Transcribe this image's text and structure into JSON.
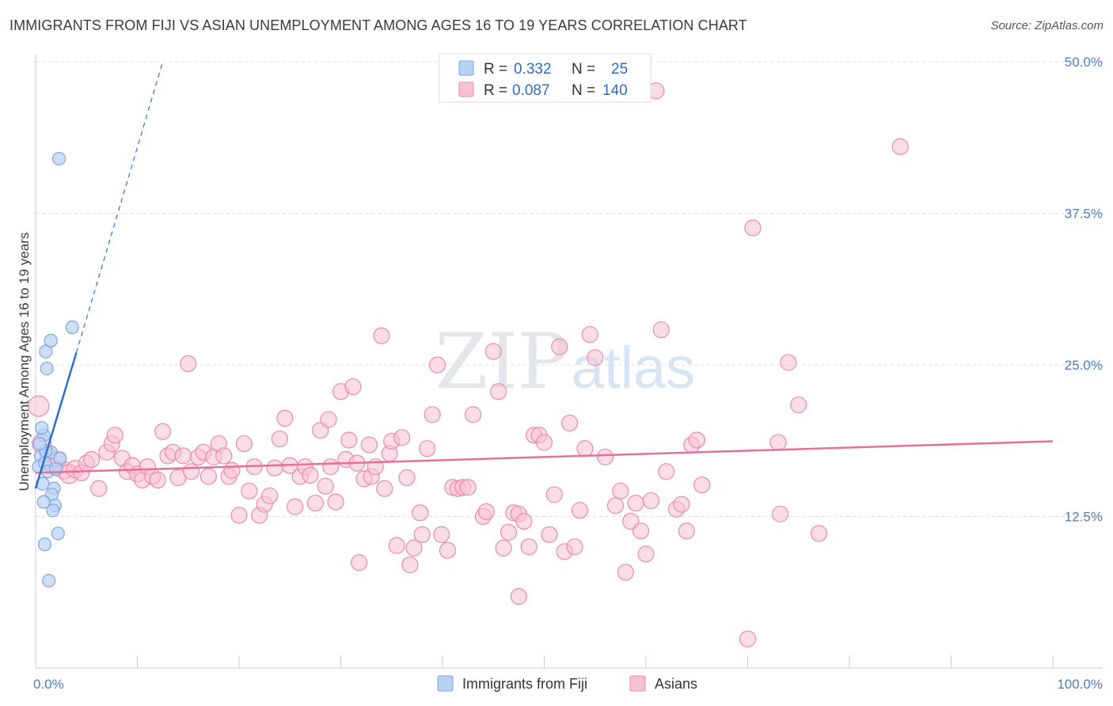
{
  "title": "IMMIGRANTS FROM FIJI VS ASIAN UNEMPLOYMENT AMONG AGES 16 TO 19 YEARS CORRELATION CHART",
  "source": "Source: ZipAtlas.com",
  "watermark": {
    "zip": "ZIP",
    "atlas": "atlas"
  },
  "colors": {
    "fiji_fill": "#b7d1f3",
    "fiji_stroke": "#7ea6dd",
    "fiji_line": "#2b6fd1",
    "asian_fill": "#f9c1d2",
    "asian_stroke": "#e98aab",
    "asian_line": "#e76f9a",
    "grid": "#d9dde3",
    "axis_text": "#4a7cc7"
  },
  "legend": {
    "entries": [
      {
        "r_label": "R =",
        "r_value": "0.332",
        "n_label": "N =",
        "n_value": "25"
      },
      {
        "r_label": "R =",
        "r_value": "0.087",
        "n_label": "N =",
        "n_value": "140"
      }
    ]
  },
  "bottom_legend": [
    "Immigrants from Fiji",
    "Asians"
  ],
  "chart_data": {
    "type": "scatter",
    "title": "IMMIGRANTS FROM FIJI VS ASIAN UNEMPLOYMENT AMONG AGES 16 TO 19 YEARS CORRELATION CHART",
    "xlabel": "",
    "ylabel": "Unemployment Among Ages 16 to 19 years",
    "xlim": [
      0,
      100
    ],
    "ylim": [
      0,
      50
    ],
    "x_tick_labels": [
      {
        "value": 0,
        "label": "0.0%"
      },
      {
        "value": 100,
        "label": "100.0%"
      }
    ],
    "y_tick_labels": [
      {
        "value": 12.5,
        "label": "12.5%"
      },
      {
        "value": 25,
        "label": "25.0%"
      },
      {
        "value": 37.5,
        "label": "37.5%"
      },
      {
        "value": 50,
        "label": "50.0%"
      }
    ],
    "grid": true,
    "legend_position": "top-center",
    "series": [
      {
        "name": "Immigrants from Fiji",
        "r": 0.332,
        "n": 25,
        "trend": {
          "x0": 0,
          "y0": 14.8,
          "x1": 4.0,
          "y1": 26.0,
          "dashed_to": [
            12.5,
            50
          ]
        },
        "points": [
          [
            0.5,
            17.5,
            8
          ],
          [
            0.3,
            16.6,
            8
          ],
          [
            0.8,
            19.2,
            8
          ],
          [
            0.6,
            19.8,
            8
          ],
          [
            1.5,
            17.8,
            8
          ],
          [
            1.0,
            17.9,
            8
          ],
          [
            2.4,
            17.3,
            8
          ],
          [
            0.9,
            16.9,
            8
          ],
          [
            1.2,
            16.2,
            8
          ],
          [
            0.7,
            15.2,
            8
          ],
          [
            1.8,
            14.8,
            8
          ],
          [
            1.6,
            14.3,
            8
          ],
          [
            1.9,
            13.4,
            8
          ],
          [
            1.7,
            13.0,
            8
          ],
          [
            0.8,
            13.7,
            8
          ],
          [
            1.1,
            24.7,
            8
          ],
          [
            1.0,
            26.1,
            8
          ],
          [
            1.5,
            27.0,
            8
          ],
          [
            3.6,
            28.1,
            8
          ],
          [
            2.3,
            42.0,
            8
          ],
          [
            2.2,
            11.1,
            8
          ],
          [
            0.9,
            10.2,
            8
          ],
          [
            1.3,
            7.2,
            8
          ],
          [
            0.4,
            18.5,
            8
          ],
          [
            2.0,
            16.4,
            8
          ]
        ]
      },
      {
        "name": "Asians",
        "r": 0.087,
        "n": 140,
        "trend": {
          "x0": 0,
          "y0": 16.1,
          "x1": 100,
          "y1": 18.7
        },
        "points": [
          [
            0.3,
            21.6,
            13
          ],
          [
            0.6,
            18.5,
            12
          ],
          [
            1.2,
            17.6,
            10
          ],
          [
            1.8,
            16.6,
            10
          ],
          [
            2.2,
            17.2,
            10
          ],
          [
            2.8,
            16.3,
            11
          ],
          [
            3.3,
            16.0,
            12
          ],
          [
            3.9,
            16.4,
            11
          ],
          [
            4.5,
            16.1,
            10
          ],
          [
            5.0,
            16.9,
            10
          ],
          [
            5.5,
            17.2,
            10
          ],
          [
            6.2,
            14.8,
            10
          ],
          [
            7.0,
            17.8,
            10
          ],
          [
            7.5,
            18.5,
            10
          ],
          [
            7.8,
            19.2,
            10
          ],
          [
            8.5,
            17.3,
            10
          ],
          [
            9.0,
            16.2,
            10
          ],
          [
            9.5,
            16.7,
            10
          ],
          [
            10.0,
            16.0,
            10
          ],
          [
            10.5,
            15.5,
            10
          ],
          [
            11.0,
            16.6,
            10
          ],
          [
            11.5,
            15.8,
            10
          ],
          [
            12.0,
            15.5,
            10
          ],
          [
            12.5,
            19.5,
            10
          ],
          [
            13.0,
            17.5,
            10
          ],
          [
            13.5,
            17.8,
            10
          ],
          [
            14.0,
            15.7,
            10
          ],
          [
            14.5,
            17.5,
            10
          ],
          [
            15.0,
            25.1,
            10
          ],
          [
            15.3,
            16.2,
            10
          ],
          [
            16.0,
            17.4,
            10
          ],
          [
            16.5,
            17.8,
            10
          ],
          [
            17.0,
            15.8,
            10
          ],
          [
            17.5,
            17.4,
            10
          ],
          [
            18.0,
            18.5,
            10
          ],
          [
            18.5,
            17.5,
            10
          ],
          [
            19.0,
            15.8,
            10
          ],
          [
            19.3,
            16.3,
            10
          ],
          [
            20.0,
            12.6,
            10
          ],
          [
            20.5,
            18.5,
            10
          ],
          [
            21.0,
            14.6,
            10
          ],
          [
            21.5,
            16.6,
            10
          ],
          [
            22.0,
            12.6,
            10
          ],
          [
            22.5,
            13.5,
            10
          ],
          [
            23.0,
            14.2,
            10
          ],
          [
            23.5,
            16.5,
            10
          ],
          [
            24.0,
            18.9,
            10
          ],
          [
            24.5,
            20.6,
            10
          ],
          [
            25.0,
            16.7,
            10
          ],
          [
            25.5,
            13.3,
            10
          ],
          [
            26.0,
            15.8,
            10
          ],
          [
            26.5,
            16.6,
            10
          ],
          [
            27.0,
            15.9,
            10
          ],
          [
            27.5,
            13.6,
            10
          ],
          [
            28.0,
            19.6,
            10
          ],
          [
            28.5,
            15.0,
            10
          ],
          [
            28.8,
            20.5,
            10
          ],
          [
            29.0,
            16.6,
            10
          ],
          [
            29.5,
            13.7,
            10
          ],
          [
            30.0,
            22.8,
            10
          ],
          [
            30.5,
            17.2,
            10
          ],
          [
            30.8,
            18.8,
            10
          ],
          [
            31.2,
            23.2,
            10
          ],
          [
            31.6,
            16.9,
            10
          ],
          [
            31.8,
            8.7,
            10
          ],
          [
            32.3,
            15.6,
            10
          ],
          [
            32.8,
            18.4,
            10
          ],
          [
            33.0,
            15.8,
            10
          ],
          [
            33.4,
            16.6,
            10
          ],
          [
            34.0,
            27.4,
            10
          ],
          [
            34.3,
            14.8,
            10
          ],
          [
            34.8,
            17.7,
            10
          ],
          [
            35.0,
            18.7,
            10
          ],
          [
            35.5,
            10.1,
            10
          ],
          [
            36.0,
            19.0,
            10
          ],
          [
            36.5,
            15.7,
            10
          ],
          [
            36.8,
            8.5,
            10
          ],
          [
            37.2,
            9.9,
            10
          ],
          [
            37.8,
            12.8,
            10
          ],
          [
            38.0,
            11.0,
            10
          ],
          [
            38.5,
            18.1,
            10
          ],
          [
            39.0,
            20.9,
            10
          ],
          [
            39.5,
            25.0,
            10
          ],
          [
            39.9,
            11.0,
            10
          ],
          [
            40.5,
            9.7,
            10
          ],
          [
            41.0,
            14.9,
            10
          ],
          [
            41.5,
            14.8,
            10
          ],
          [
            42.0,
            14.9,
            10
          ],
          [
            42.5,
            14.9,
            10
          ],
          [
            43.0,
            20.9,
            10
          ],
          [
            44.0,
            12.5,
            10
          ],
          [
            44.3,
            12.9,
            10
          ],
          [
            45.0,
            26.1,
            10
          ],
          [
            45.5,
            22.8,
            10
          ],
          [
            46.0,
            9.9,
            10
          ],
          [
            46.5,
            11.2,
            10
          ],
          [
            47.0,
            12.8,
            10
          ],
          [
            47.5,
            12.7,
            10
          ],
          [
            48.0,
            12.1,
            10
          ],
          [
            48.5,
            10.0,
            10
          ],
          [
            49.0,
            19.2,
            10
          ],
          [
            49.5,
            19.2,
            10
          ],
          [
            50.0,
            18.6,
            10
          ],
          [
            50.5,
            11.0,
            10
          ],
          [
            51.0,
            14.3,
            10
          ],
          [
            51.5,
            26.5,
            10
          ],
          [
            52.0,
            9.6,
            10
          ],
          [
            52.5,
            20.2,
            10
          ],
          [
            53.0,
            10.0,
            10
          ],
          [
            53.5,
            13.0,
            10
          ],
          [
            54.0,
            18.1,
            10
          ],
          [
            54.5,
            27.5,
            10
          ],
          [
            55.0,
            25.6,
            10
          ],
          [
            56.0,
            17.4,
            10
          ],
          [
            57.0,
            13.4,
            10
          ],
          [
            57.5,
            14.6,
            10
          ],
          [
            58.0,
            7.9,
            10
          ],
          [
            58.5,
            12.1,
            10
          ],
          [
            59.0,
            13.6,
            10
          ],
          [
            59.5,
            11.3,
            10
          ],
          [
            60.0,
            9.4,
            10
          ],
          [
            60.5,
            13.8,
            10
          ],
          [
            61.0,
            47.6,
            10
          ],
          [
            61.5,
            27.9,
            10
          ],
          [
            62.0,
            16.2,
            10
          ],
          [
            63.0,
            13.1,
            10
          ],
          [
            63.5,
            13.5,
            10
          ],
          [
            64.0,
            11.3,
            10
          ],
          [
            64.5,
            18.4,
            10
          ],
          [
            65.0,
            18.8,
            10
          ],
          [
            65.5,
            15.1,
            10
          ],
          [
            70.0,
            2.4,
            10
          ],
          [
            70.5,
            36.3,
            10
          ],
          [
            73.0,
            18.6,
            10
          ],
          [
            73.2,
            12.7,
            10
          ],
          [
            75.0,
            21.7,
            10
          ],
          [
            74.0,
            25.2,
            10
          ],
          [
            77.0,
            11.1,
            10
          ],
          [
            85.0,
            43.0,
            10
          ],
          [
            47.5,
            5.9,
            10
          ]
        ]
      }
    ]
  }
}
